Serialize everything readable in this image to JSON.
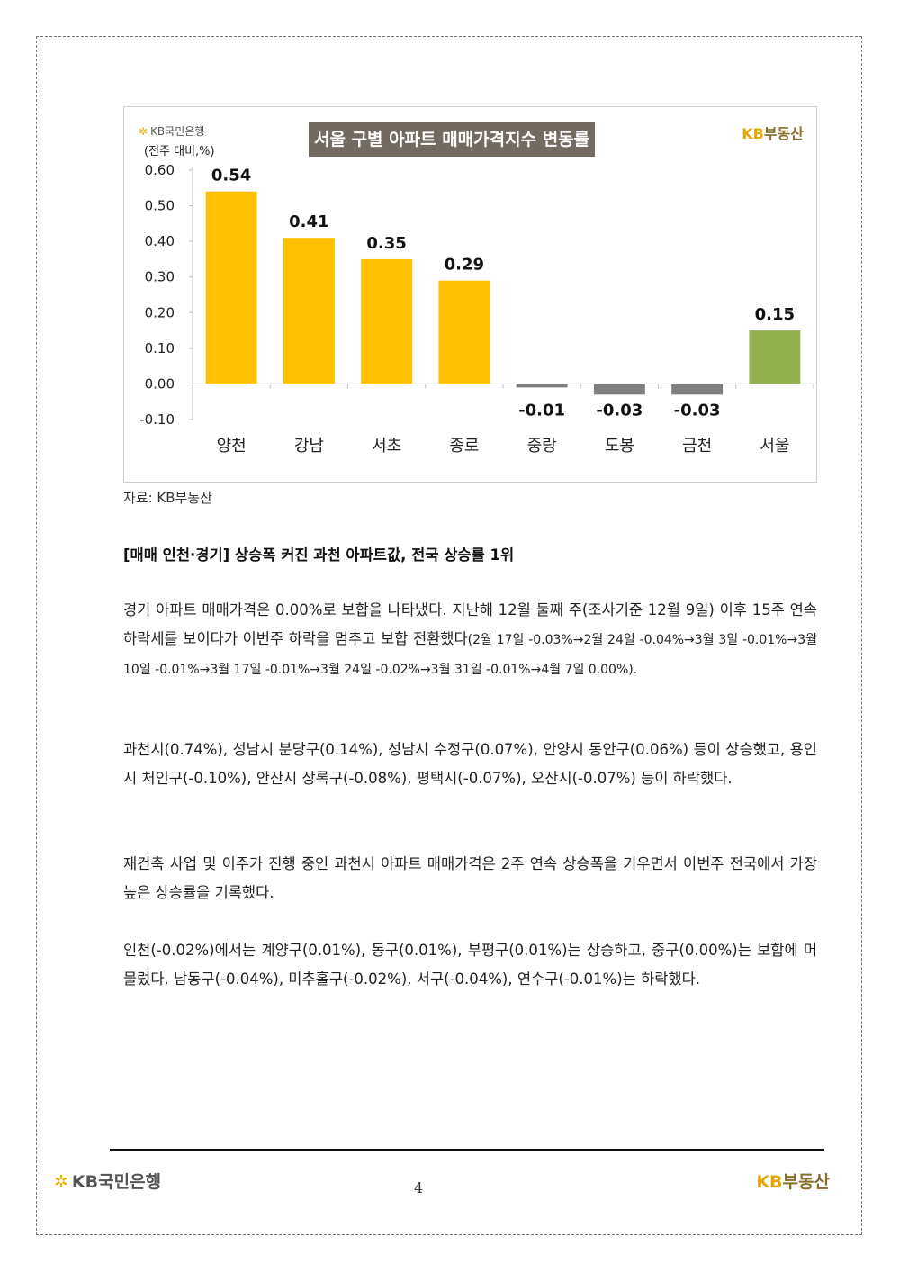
{
  "chart_header": {
    "bank_logo": "KB국민은행",
    "title": "서울 구별 아파트 매매가격지수 변동률",
    "unit": "(전주 대비,%)",
    "realty_logo_kb": "KB",
    "realty_logo_rest": "부동산"
  },
  "chart_data": {
    "type": "bar",
    "title": "서울 구별 아파트 매매가격지수 변동률",
    "ylabel": "(전주 대비,%)",
    "categories": [
      "양천",
      "강남",
      "서초",
      "종로",
      "중랑",
      "도봉",
      "금천",
      "서울"
    ],
    "values": [
      0.54,
      0.41,
      0.35,
      0.29,
      -0.01,
      -0.03,
      -0.03,
      0.15
    ],
    "value_labels": [
      "0.54",
      "0.41",
      "0.35",
      "0.29",
      "-0.01",
      "-0.03",
      "-0.03",
      "0.15"
    ],
    "colors": [
      "#ffc000",
      "#ffc000",
      "#ffc000",
      "#ffc000",
      "#808080",
      "#808080",
      "#808080",
      "#92b050"
    ],
    "ylim": [
      -0.1,
      0.6
    ],
    "yticks": [
      "0.60",
      "0.50",
      "0.40",
      "0.30",
      "0.20",
      "0.10",
      "0.00",
      "-0.10"
    ],
    "ytick_values": [
      0.6,
      0.5,
      0.4,
      0.3,
      0.2,
      0.1,
      0.0,
      -0.1
    ],
    "grid": false
  },
  "source": "자료: KB부동산",
  "heading": "[매매 인천·경기] 상승폭 커진 과천 아파트값, 전국 상승률 1위",
  "paragraphs": {
    "p1_main": "경기 아파트 매매가격은 0.00%로 보합을 나타냈다. 지난해 12월 둘째 주(조사기준 12월 9일) 이후 15주 연속 하락세를 보이다가 이번주 하락을 멈추고 보합 전환했다",
    "p1_small": "(2월 17일 -0.03%→2월 24일 -0.04%→3월 3일 -0.01%→3월 10일 -0.01%→3월 17일 -0.01%→3월 24일 -0.02%→3월 31일 -0.01%→4월 7일 0.00%).",
    "p2": "과천시(0.74%), 성남시 분당구(0.14%), 성남시 수정구(0.07%), 안양시 동안구(0.06%) 등이 상승했고, 용인시 처인구(-0.10%), 안산시 상록구(-0.08%), 평택시(-0.07%), 오산시(-0.07%) 등이 하락했다.",
    "p3": "재건축 사업 및 이주가 진행 중인 과천시 아파트 매매가격은 2주 연속 상승폭을 키우면서 이번주 전국에서 가장 높은 상승률을 기록했다.",
    "p4": "인천(-0.02%)에서는 계양구(0.01%), 동구(0.01%), 부평구(0.01%)는 상승하고, 중구(0.00%)는 보합에 머물렀다. 남동구(-0.04%), 미추홀구(-0.02%), 서구(-0.04%), 연수구(-0.01%)는 하락했다."
  },
  "footer": {
    "bank_logo": "KB국민은행",
    "page_number": "4",
    "realty_logo_kb": "KB",
    "realty_logo_rest": "부동산"
  }
}
